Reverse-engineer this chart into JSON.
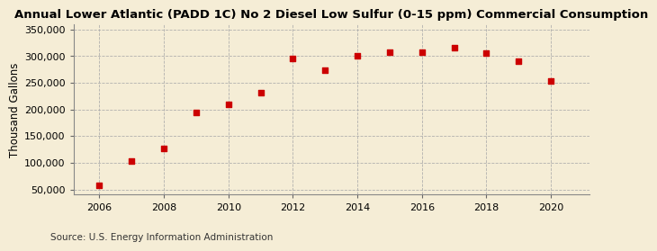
{
  "title": "Annual Lower Atlantic (PADD 1C) No 2 Diesel Low Sulfur (0-15 ppm) Commercial Consumption",
  "ylabel": "Thousand Gallons",
  "source": "Source: U.S. Energy Information Administration",
  "years": [
    2006,
    2007,
    2008,
    2009,
    2010,
    2011,
    2012,
    2013,
    2014,
    2015,
    2016,
    2017,
    2018,
    2019,
    2020
  ],
  "values": [
    58000,
    103000,
    126000,
    194000,
    210000,
    232000,
    295000,
    274000,
    300000,
    307000,
    308000,
    315000,
    305000,
    290000,
    254000
  ],
  "marker_color": "#CC0000",
  "background_color": "#F5EDD6",
  "grid_color": "#AAAAAA",
  "ylim": [
    40000,
    360000
  ],
  "yticks": [
    50000,
    100000,
    150000,
    200000,
    250000,
    300000,
    350000
  ],
  "xticks": [
    2006,
    2008,
    2010,
    2012,
    2014,
    2016,
    2018,
    2020
  ],
  "xlim": [
    2005.2,
    2021.2
  ],
  "title_fontsize": 9.5,
  "ylabel_fontsize": 8.5,
  "tick_fontsize": 8,
  "source_fontsize": 7.5
}
